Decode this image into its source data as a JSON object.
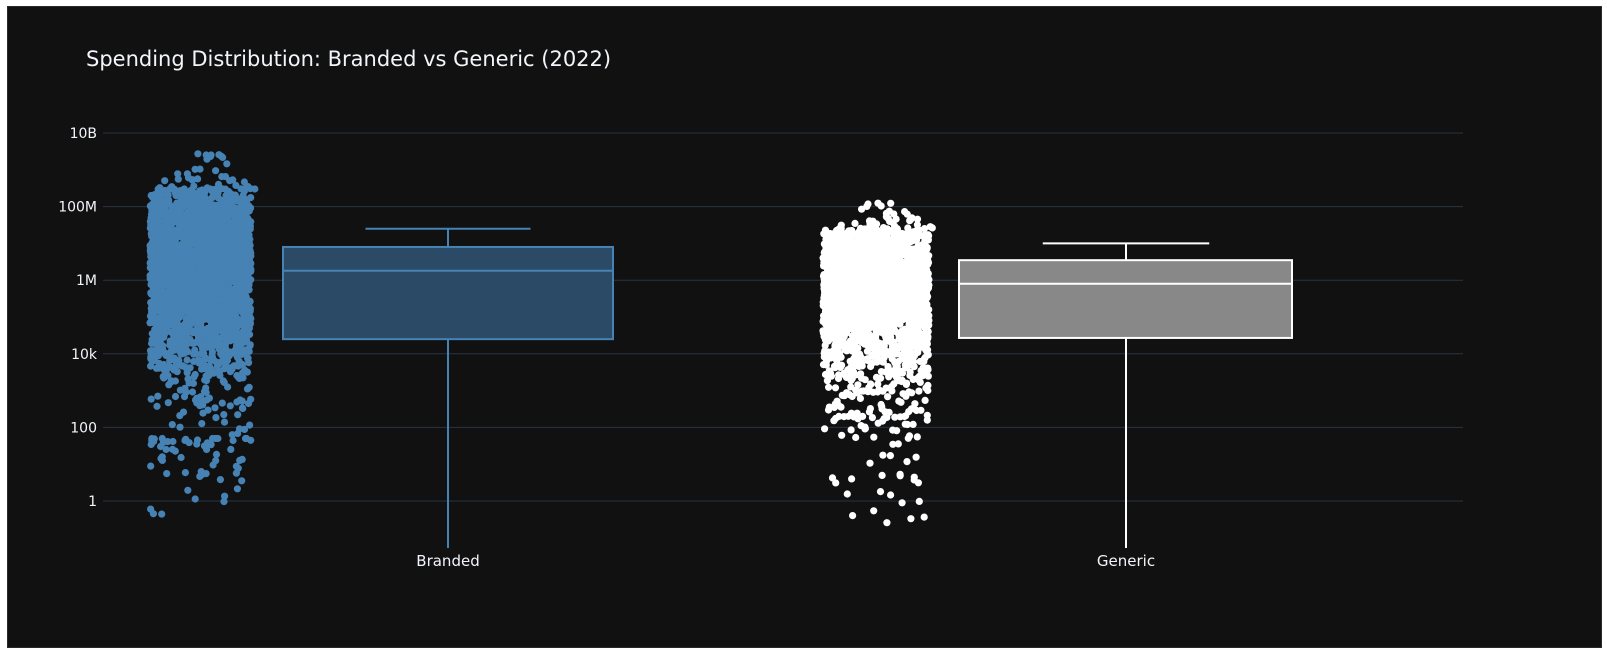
{
  "chart_data": {
    "type": "box",
    "title": "Spending Distribution: Branded vs Generic (2022)",
    "xlabel": "",
    "ylabel": "",
    "y_scale": "log",
    "y_range": [
      0.05,
      10000000000
    ],
    "y_ticks": [
      {
        "value": 1,
        "label": "1"
      },
      {
        "value": 100,
        "label": "100"
      },
      {
        "value": 10000,
        "label": "10k"
      },
      {
        "value": 1000000,
        "label": "1M"
      },
      {
        "value": 100000000,
        "label": "100M"
      },
      {
        "value": 10000000000,
        "label": "10B"
      }
    ],
    "grid": true,
    "legend": "none",
    "categories": [
      "Branded",
      "Generic"
    ],
    "series": [
      {
        "category": "Branded",
        "color": "#4682b4",
        "fill": "#2b4a66",
        "points_shown": "all",
        "lower_fence": 0.05,
        "q1": 25000,
        "median": 1800000,
        "q3": 8000000,
        "upper_fence": 25000000,
        "min_point": 0.3,
        "max_point": 3500000000,
        "dense_low": 50,
        "dense_high": 300000000
      },
      {
        "category": "Generic",
        "color": "#ffffff",
        "fill": "#888888",
        "points_shown": "all",
        "lower_fence": 0.05,
        "q1": 27000,
        "median": 800000,
        "q3": 3500000,
        "upper_fence": 10000000,
        "min_point": 0.2,
        "max_point": 150000000,
        "dense_low": 200,
        "dense_high": 25000000
      }
    ]
  }
}
